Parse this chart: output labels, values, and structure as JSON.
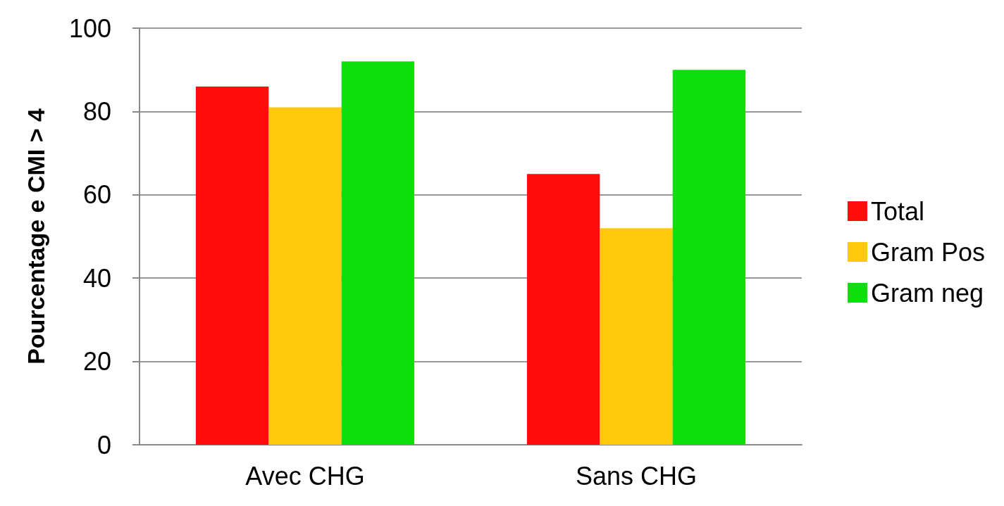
{
  "chart_data": {
    "type": "bar",
    "ylabel": "Pourcentage e CMI > 4",
    "categories": [
      "Avec CHG",
      "Sans CHG"
    ],
    "series": [
      {
        "name": "Total",
        "color": "#ff0d0d",
        "values": [
          86,
          65
        ]
      },
      {
        "name": "Gram Pos",
        "color": "#ffc90e",
        "values": [
          81,
          52
        ]
      },
      {
        "name": "Gram neg",
        "color": "#0ddf0d",
        "values": [
          92,
          90
        ]
      }
    ],
    "ylim": [
      0,
      100
    ],
    "yticks": [
      0,
      20,
      40,
      60,
      80,
      100
    ],
    "grid": "y",
    "legend": "right"
  }
}
